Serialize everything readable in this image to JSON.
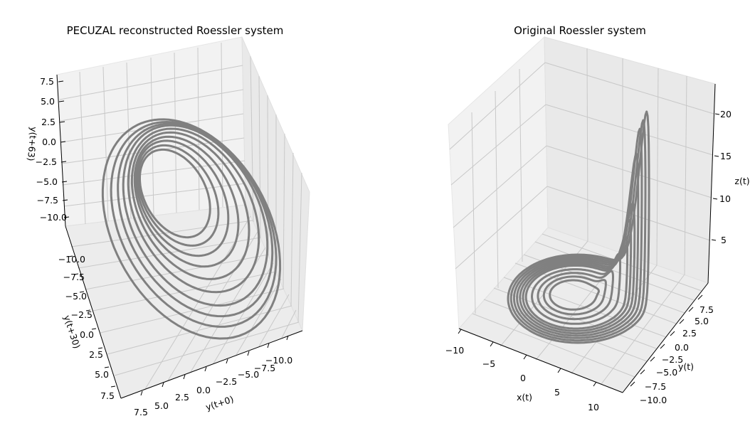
{
  "chart_data": [
    {
      "type": "line",
      "projection": "3d",
      "title": "PECUZAL reconstructed Roessler system",
      "xlabel": "y(t+0)",
      "ylabel": "y(t+30)",
      "zlabel": "y(t+63)",
      "xticks": [
        "7.5",
        "5.0",
        "2.5",
        "0.0",
        "−2.5",
        "−5.0",
        "−7.5",
        "−10.0"
      ],
      "yticks": [
        "−10.0",
        "−7.5",
        "−5.0",
        "−2.5",
        "0.0",
        "2.5",
        "5.0",
        "7.5"
      ],
      "zticks": [
        "7.5",
        "5.0",
        "2.5",
        "0.0",
        "−2.5",
        "−5.0",
        "−7.5",
        "−10.0"
      ],
      "xlim": [
        -11,
        8
      ],
      "ylim": [
        -11,
        8
      ],
      "zlim": [
        -11,
        8
      ],
      "grid": true,
      "line_color": "#808080",
      "delays": [
        0,
        30,
        63
      ],
      "series": [
        {
          "orbits": [
            {
              "amplitude": 10.5,
              "phase": 0.0
            },
            {
              "amplitude": 9.8,
              "phase": 0.15
            },
            {
              "amplitude": 9.2,
              "phase": 0.3
            },
            {
              "amplitude": 8.6,
              "phase": 0.45
            },
            {
              "amplitude": 7.8,
              "phase": 0.6
            },
            {
              "amplitude": 7.0,
              "phase": 0.75
            },
            {
              "amplitude": 6.2,
              "phase": 0.9
            },
            {
              "amplitude": 5.5,
              "phase": 1.05
            },
            {
              "amplitude": 4.8,
              "phase": 1.2
            },
            {
              "amplitude": 4.2,
              "phase": 1.35
            }
          ]
        }
      ]
    },
    {
      "type": "line",
      "projection": "3d",
      "title": "Original Roessler system",
      "xlabel": "x(t)",
      "ylabel": "y(t)",
      "zlabel": "z(t)",
      "xticks": [
        "−10",
        "−5",
        "0",
        "5",
        "10"
      ],
      "yticks": [
        "−10.0",
        "−7.5",
        "−5.0",
        "−2.5",
        "0.0",
        "2.5",
        "5.0",
        "7.5"
      ],
      "zticks": [
        "5",
        "10",
        "15",
        "20"
      ],
      "xlim": [
        -11,
        12
      ],
      "ylim": [
        -11,
        8
      ],
      "zlim": [
        0,
        23
      ],
      "grid": true,
      "line_color": "#808080",
      "series": [
        {
          "loops": [
            {
              "radius": 10.5,
              "peak_z": 22.0
            },
            {
              "radius": 10.0,
              "peak_z": 21.0
            },
            {
              "radius": 9.5,
              "peak_z": 20.0
            },
            {
              "radius": 9.0,
              "peak_z": 17.0
            },
            {
              "radius": 8.5,
              "peak_z": 11.0
            },
            {
              "radius": 8.0,
              "peak_z": 9.0
            },
            {
              "radius": 7.5,
              "peak_z": 7.0
            },
            {
              "radius": 6.5,
              "peak_z": 5.0
            },
            {
              "radius": 5.5,
              "peak_z": 3.0
            },
            {
              "radius": 4.5,
              "peak_z": 2.0
            },
            {
              "radius": 3.5,
              "peak_z": 1.0
            }
          ]
        }
      ]
    }
  ]
}
